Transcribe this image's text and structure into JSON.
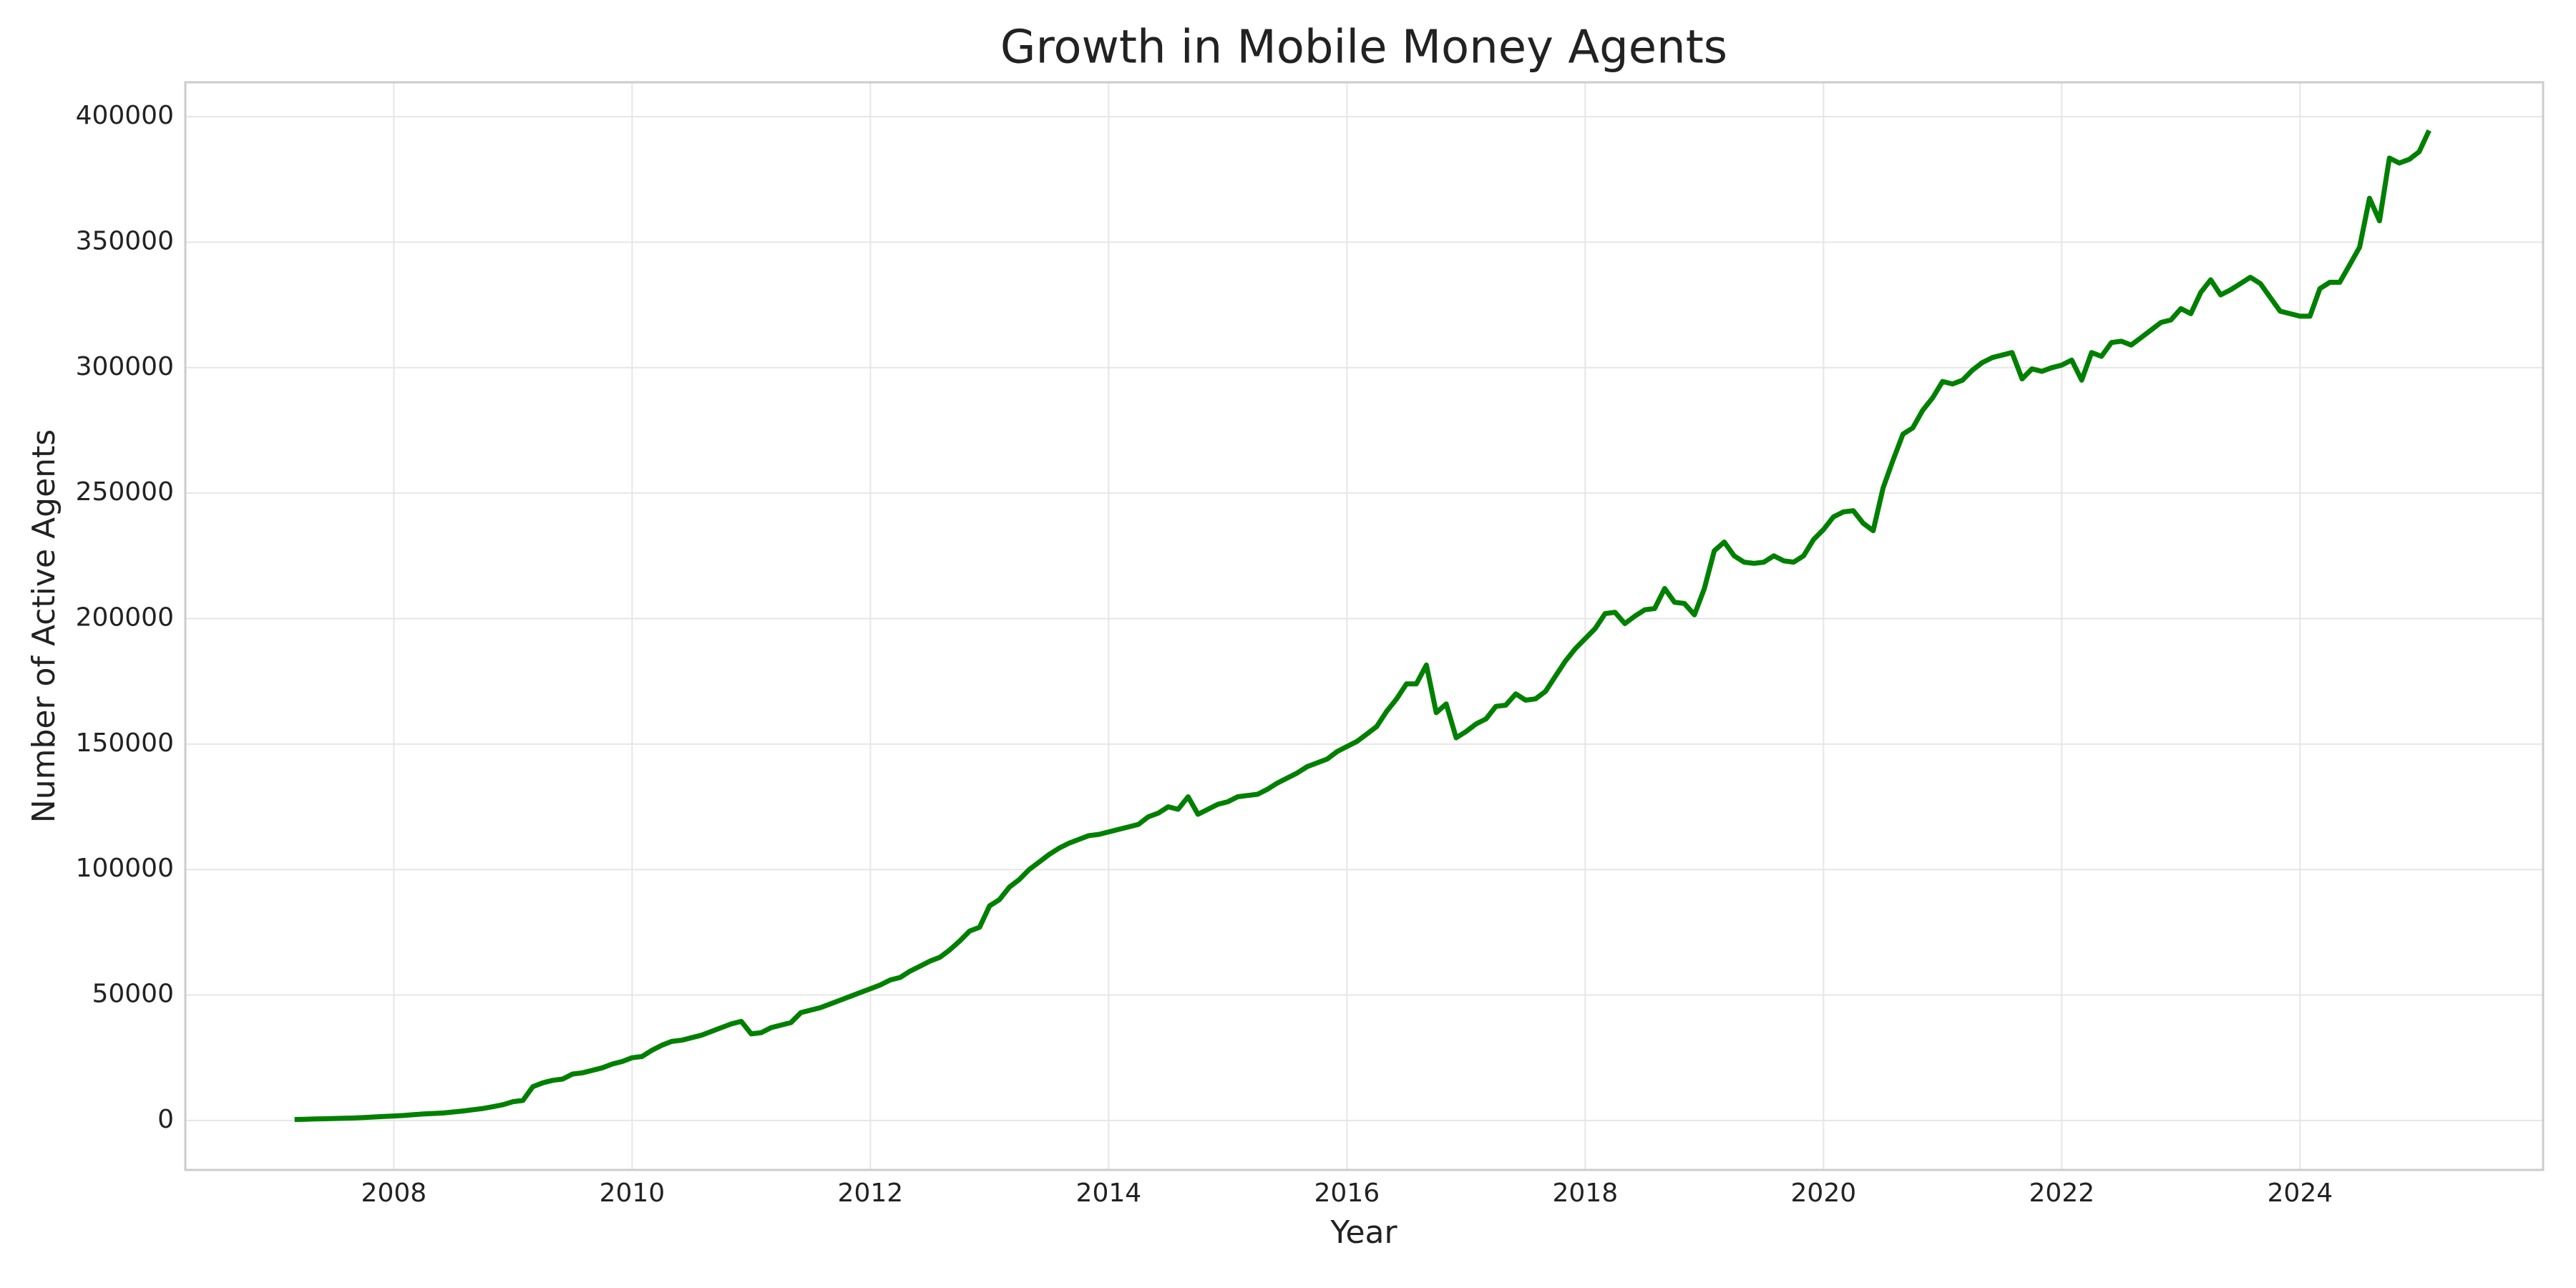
{
  "chart_data": {
    "type": "line",
    "title": "Growth in Mobile Money Agents",
    "x_label": "Year",
    "y_label": "Number of Active Agents",
    "color": "#008000",
    "grid": true,
    "xlim": [
      2006.25,
      2026.04
    ],
    "xticks": [
      2008,
      2010,
      2012,
      2014,
      2016,
      2018,
      2020,
      2022,
      2024
    ],
    "ylim": [
      -19700,
      413700
    ],
    "yticks": [
      0,
      50000,
      100000,
      150000,
      200000,
      250000,
      300000,
      350000,
      400000
    ],
    "x": [
      2007.167,
      2007.25,
      2007.333,
      2007.417,
      2007.5,
      2007.583,
      2007.667,
      2007.75,
      2007.833,
      2007.917,
      2008,
      2008.083,
      2008.167,
      2008.25,
      2008.333,
      2008.417,
      2008.5,
      2008.583,
      2008.667,
      2008.75,
      2008.833,
      2008.917,
      2009,
      2009.083,
      2009.167,
      2009.25,
      2009.333,
      2009.417,
      2009.5,
      2009.583,
      2009.667,
      2009.75,
      2009.833,
      2009.917,
      2010,
      2010.083,
      2010.167,
      2010.25,
      2010.333,
      2010.417,
      2010.5,
      2010.583,
      2010.667,
      2010.75,
      2010.833,
      2010.917,
      2011,
      2011.083,
      2011.167,
      2011.25,
      2011.333,
      2011.417,
      2011.5,
      2011.583,
      2011.667,
      2011.75,
      2011.833,
      2011.917,
      2012,
      2012.083,
      2012.167,
      2012.25,
      2012.333,
      2012.417,
      2012.5,
      2012.583,
      2012.667,
      2012.75,
      2012.833,
      2012.917,
      2013,
      2013.083,
      2013.167,
      2013.25,
      2013.333,
      2013.417,
      2013.5,
      2013.583,
      2013.667,
      2013.75,
      2013.833,
      2013.917,
      2014,
      2014.083,
      2014.167,
      2014.25,
      2014.333,
      2014.417,
      2014.5,
      2014.583,
      2014.667,
      2014.75,
      2014.833,
      2014.917,
      2015,
      2015.083,
      2015.167,
      2015.25,
      2015.333,
      2015.417,
      2015.5,
      2015.583,
      2015.667,
      2015.75,
      2015.833,
      2015.917,
      2016,
      2016.083,
      2016.167,
      2016.25,
      2016.333,
      2016.417,
      2016.5,
      2016.583,
      2016.667,
      2016.75,
      2016.833,
      2016.917,
      2017,
      2017.083,
      2017.167,
      2017.25,
      2017.333,
      2017.417,
      2017.5,
      2017.583,
      2017.667,
      2017.75,
      2017.833,
      2017.917,
      2018,
      2018.083,
      2018.167,
      2018.25,
      2018.333,
      2018.417,
      2018.5,
      2018.583,
      2018.667,
      2018.75,
      2018.833,
      2018.917,
      2019,
      2019.083,
      2019.167,
      2019.25,
      2019.333,
      2019.417,
      2019.5,
      2019.583,
      2019.667,
      2019.75,
      2019.833,
      2019.917,
      2020,
      2020.083,
      2020.167,
      2020.25,
      2020.333,
      2020.417,
      2020.5,
      2020.583,
      2020.667,
      2020.75,
      2020.833,
      2020.917,
      2021,
      2021.083,
      2021.167,
      2021.25,
      2021.333,
      2021.417,
      2021.5,
      2021.583,
      2021.667,
      2021.75,
      2021.833,
      2021.917,
      2022,
      2022.083,
      2022.167,
      2022.25,
      2022.333,
      2022.417,
      2022.5,
      2022.583,
      2022.667,
      2022.75,
      2022.833,
      2022.917,
      2023,
      2023.083,
      2023.167,
      2023.25,
      2023.333,
      2023.417,
      2023.5,
      2023.583,
      2023.667,
      2023.75,
      2023.833,
      2023.917,
      2024,
      2024.083,
      2024.167,
      2024.25,
      2024.333,
      2024.417,
      2024.5,
      2024.583,
      2024.667,
      2024.75,
      2024.833,
      2024.917,
      2025,
      2025.083
    ],
    "values": [
      400,
      500,
      600,
      700,
      800,
      900,
      1000,
      1200,
      1400,
      1600,
      1800,
      2000,
      2300,
      2600,
      2800,
      3000,
      3400,
      3800,
      4300,
      4800,
      5500,
      6300,
      7500,
      8000,
      13500,
      15000,
      16000,
      16500,
      18500,
      19000,
      20000,
      21000,
      22500,
      23500,
      25000,
      25500,
      28000,
      30000,
      31500,
      32000,
      33000,
      34000,
      35500,
      37000,
      38500,
      39500,
      34500,
      35000,
      37000,
      38000,
      39000,
      43000,
      44000,
      45000,
      46500,
      48000,
      49500,
      51000,
      52500,
      54000,
      56000,
      57000,
      59500,
      61500,
      63500,
      65000,
      68000,
      71500,
      75500,
      77000,
      85500,
      88000,
      93000,
      96000,
      100000,
      103000,
      106000,
      108500,
      110500,
      112000,
      113500,
      114000,
      115000,
      116000,
      117000,
      118000,
      121000,
      122500,
      125000,
      124000,
      129000,
      122000,
      124000,
      126000,
      127000,
      129000,
      129500,
      130000,
      132000,
      134500,
      136500,
      138500,
      141000,
      142500,
      144000,
      147000,
      149000,
      151000,
      154000,
      157000,
      163000,
      168000,
      174000,
      174000,
      181500,
      162500,
      166000,
      152500,
      155000,
      158000,
      160000,
      165000,
      165500,
      170000,
      167500,
      168000,
      171000,
      177000,
      183000,
      188000,
      192000,
      196000,
      202000,
      202500,
      198000,
      201000,
      203500,
      204000,
      212000,
      206500,
      206000,
      201500,
      212000,
      227000,
      230500,
      225000,
      222500,
      222000,
      222500,
      225000,
      223000,
      222500,
      225000,
      231500,
      235500,
      240500,
      242500,
      243000,
      238000,
      235000,
      252000,
      263000,
      273500,
      276000,
      283000,
      288000,
      294500,
      293500,
      295000,
      299000,
      302000,
      304000,
      305000,
      306000,
      295500,
      299500,
      298500,
      300000,
      301000,
      303000,
      295000,
      306000,
      304500,
      310000,
      310500,
      309000,
      312000,
      315000,
      318000,
      319000,
      323500,
      321500,
      330000,
      335000,
      329000,
      331000,
      333500,
      336000,
      333500,
      328000,
      322500,
      321500,
      320500,
      320500,
      331500,
      334000,
      334000,
      341000,
      348000,
      367500,
      358500,
      383500,
      381500,
      383000,
      386000,
      394500
    ]
  }
}
